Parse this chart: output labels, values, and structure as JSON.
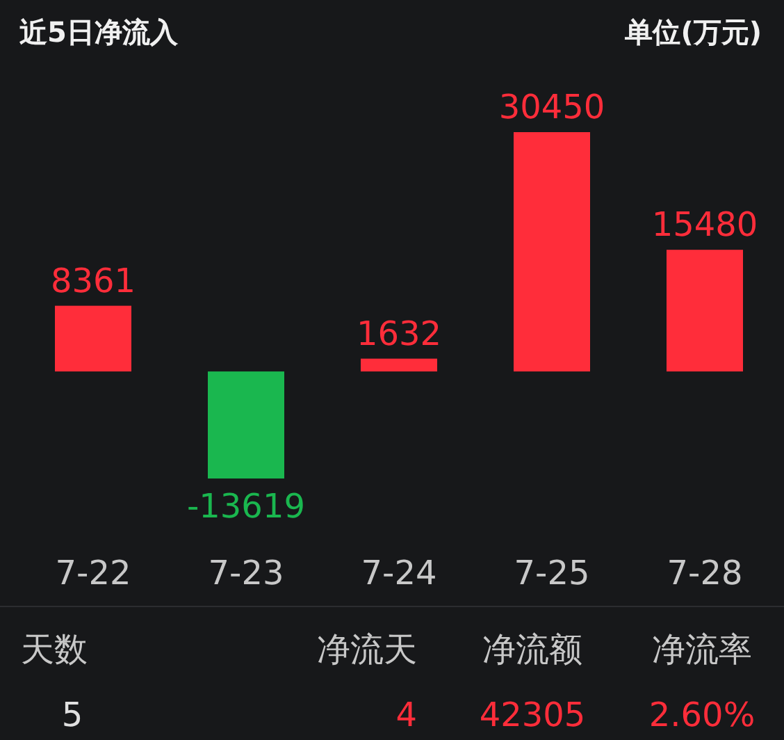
{
  "chart_data": {
    "type": "bar",
    "title": "近5日净流入",
    "subtitle": "单位(万元)",
    "categories": [
      "7-22",
      "7-23",
      "7-24",
      "7-25",
      "7-28"
    ],
    "values": [
      8361,
      -13619,
      1632,
      30450,
      15480
    ],
    "colors": [
      "#ff2d3a",
      "#1ab74f",
      "#ff2d3a",
      "#ff2d3a",
      "#ff2d3a"
    ],
    "data_labels": true,
    "annotations": [
      "天数",
      "净流天",
      "净流额",
      "净流率",
      "5",
      "4",
      "42305",
      "2.60%"
    ]
  }
}
